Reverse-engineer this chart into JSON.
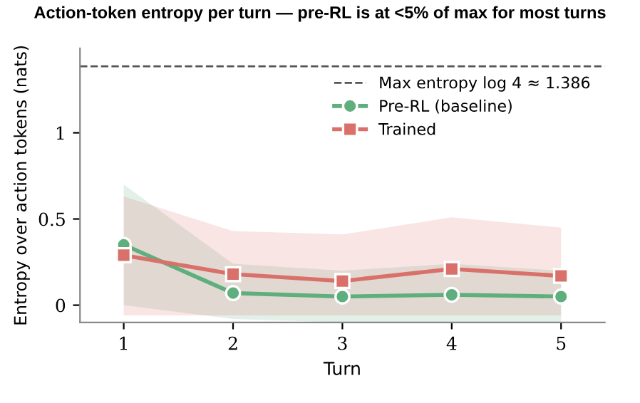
{
  "chart_data": {
    "type": "line",
    "title": "Action-token entropy per turn — pre-RL is at <5% of max for most turns",
    "xlabel": "Turn",
    "ylabel": "Entropy over action tokens (nats)",
    "x": [
      1,
      2,
      3,
      4,
      5
    ],
    "series": [
      {
        "name": "Pre-RL (baseline)",
        "color": "#5fae7e",
        "marker": "circle",
        "values": [
          0.35,
          0.07,
          0.05,
          0.06,
          0.05
        ],
        "lower": [
          0.0,
          -0.08,
          -0.1,
          -0.1,
          -0.1
        ],
        "upper": [
          0.7,
          0.24,
          0.2,
          0.24,
          0.2
        ]
      },
      {
        "name": "Trained",
        "color": "#d9706a",
        "marker": "square",
        "values": [
          0.29,
          0.18,
          0.14,
          0.21,
          0.17
        ],
        "lower": [
          -0.06,
          -0.06,
          -0.06,
          -0.06,
          -0.06
        ],
        "upper": [
          0.63,
          0.43,
          0.41,
          0.51,
          0.45
        ]
      }
    ],
    "ref_lines": [
      {
        "axis": "y",
        "value": 1.386,
        "label": "Max entropy log 4 ≈ 1.386",
        "color": "#555555",
        "line_style": "dashed"
      }
    ],
    "xlim": [
      0.6,
      5.4
    ],
    "ylim": [
      -0.1,
      1.49
    ],
    "xticks": [
      1,
      2,
      3,
      4,
      5
    ],
    "yticks": [
      0,
      0.5,
      1
    ],
    "grid": false,
    "legend": "top right",
    "line_style": "solid"
  }
}
